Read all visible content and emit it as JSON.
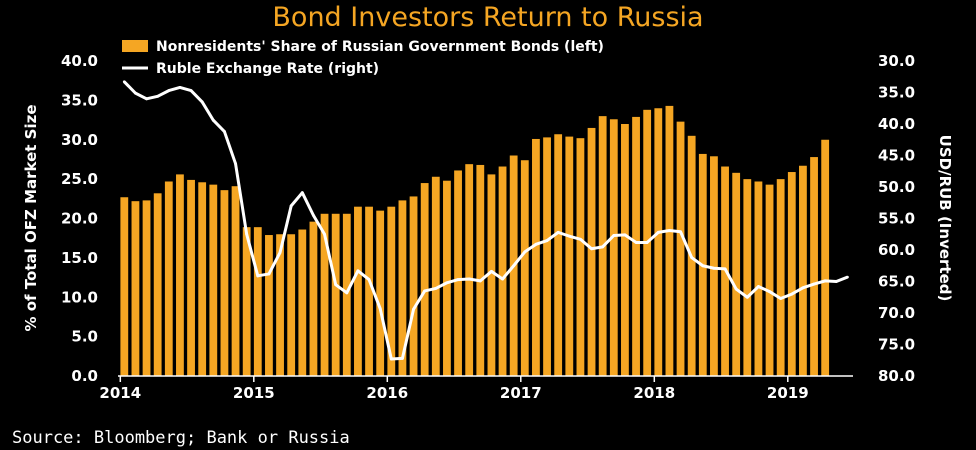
{
  "chart_data": {
    "type": "bar",
    "title": "Bond Investors Return to Russia",
    "source": "Source: Bloomberg; Bank or Russia",
    "ylabel_left": "% of Total OFZ Market Size",
    "ylabel_right": "USD/RUB (Inverted)",
    "ylim_left": [
      0,
      40
    ],
    "ylim_right": [
      30,
      80
    ],
    "right_axis_inverted": true,
    "y_ticks_left": [
      "0.0",
      "5.0",
      "10.0",
      "15.0",
      "20.0",
      "25.0",
      "30.0",
      "35.0",
      "40.0"
    ],
    "y_ticks_right": [
      "30.0",
      "35.0",
      "40.0",
      "45.0",
      "50.0",
      "55.0",
      "60.0",
      "65.0",
      "70.0",
      "75.0",
      "80.0"
    ],
    "x_ticks": [
      "2014",
      "2015",
      "2016",
      "2017",
      "2018",
      "2019"
    ],
    "x_start": "2014-01",
    "legend_position": "top-left",
    "grid": false,
    "colors": {
      "bars": "#f5a623",
      "line": "#ffffff",
      "title": "#f5a623",
      "background": "#000000"
    },
    "series": [
      {
        "name": "Nonresidents' Share of Russian Government Bonds (left)",
        "type": "bar",
        "values": [
          22.7,
          22.2,
          22.3,
          23.2,
          24.7,
          25.6,
          24.9,
          24.6,
          24.3,
          23.6,
          24.1,
          18.9,
          18.9,
          17.9,
          18.0,
          18.0,
          18.6,
          19.6,
          20.6,
          20.6,
          20.6,
          21.5,
          21.5,
          21.0,
          21.5,
          22.3,
          22.8,
          24.5,
          25.3,
          24.8,
          26.1,
          26.9,
          26.8,
          25.6,
          26.6,
          28.0,
          27.4,
          30.1,
          30.3,
          30.7,
          30.4,
          30.2,
          31.5,
          33.0,
          32.6,
          32.0,
          32.9,
          33.8,
          34.0,
          34.3,
          32.3,
          30.5,
          28.2,
          27.9,
          26.6,
          25.8,
          25.0,
          24.7,
          24.3,
          25.0,
          25.9,
          26.7,
          27.8,
          30.0
        ]
      },
      {
        "name": "Ruble Exchange Rate (right)",
        "type": "line",
        "values": [
          33.3,
          35.1,
          36.0,
          35.6,
          34.7,
          34.2,
          34.7,
          36.5,
          39.4,
          41.2,
          46.3,
          57.5,
          64.1,
          63.8,
          60.4,
          53.0,
          50.9,
          54.5,
          57.5,
          65.5,
          66.8,
          63.3,
          64.7,
          69.3,
          77.3,
          77.2,
          69.4,
          66.5,
          66.1,
          65.2,
          64.7,
          64.6,
          64.9,
          63.4,
          64.6,
          62.5,
          60.3,
          59.1,
          58.5,
          57.2,
          57.8,
          58.3,
          59.8,
          59.5,
          57.7,
          57.6,
          58.8,
          58.8,
          57.2,
          56.9,
          57.1,
          61.2,
          62.5,
          62.9,
          63.0,
          66.2,
          67.5,
          65.8,
          66.6,
          67.7,
          67.0,
          66.0,
          65.4,
          64.9,
          65.0,
          64.3
        ]
      }
    ]
  }
}
